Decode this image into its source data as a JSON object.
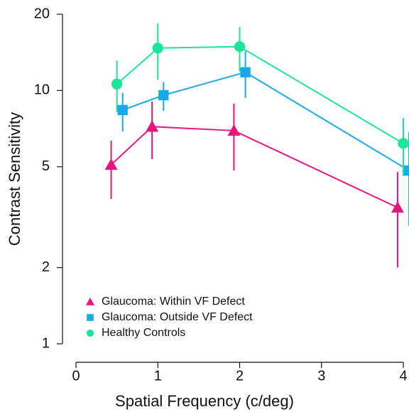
{
  "chart_data": {
    "type": "line",
    "xlabel": "Spatial Frequency (c/deg)",
    "ylabel": "Contrast Sensitivity",
    "xlim": [
      0,
      4
    ],
    "xticks": [
      0,
      1,
      2,
      3,
      4
    ],
    "ylim": [
      1,
      20
    ],
    "yticks": [
      1,
      2,
      5,
      10,
      20
    ],
    "yscale": "log",
    "legend": "lower left",
    "series": [
      {
        "name": "Glaucoma: Within VF Defect",
        "color": "#e5177e",
        "marker": "triangle",
        "x": [
          0.43,
          0.93,
          1.93,
          3.93
        ],
        "values": [
          5.09,
          7.2,
          6.94,
          3.45
        ],
        "upper": [
          6.34,
          9.04,
          8.87,
          4.77
        ],
        "lower": [
          3.73,
          5.36,
          4.83,
          2.0
        ]
      },
      {
        "name": "Glaucoma: Outside VF Defect",
        "color": "#1ba8e8",
        "marker": "square",
        "x": [
          0.57,
          1.07,
          2.07,
          4.07
        ],
        "values": [
          8.37,
          9.58,
          11.8,
          4.83
        ],
        "upper": [
          9.78,
          10.8,
          14.3,
          6.85
        ],
        "lower": [
          6.89,
          8.31,
          9.34,
          2.92
        ]
      },
      {
        "name": "Healthy Controls",
        "color": "#20e39a",
        "marker": "circle",
        "x": [
          0.5,
          1.0,
          2.0,
          4.0
        ],
        "values": [
          10.6,
          14.7,
          14.9,
          6.18
        ],
        "upper": [
          13.1,
          18.4,
          17.8,
          7.79
        ],
        "lower": [
          8.21,
          11.0,
          11.9,
          4.59
        ]
      }
    ]
  }
}
